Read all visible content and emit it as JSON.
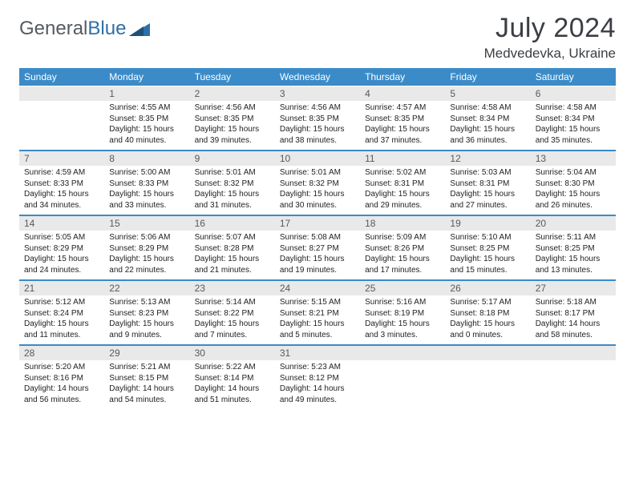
{
  "logo": {
    "text1": "General",
    "text2": "Blue"
  },
  "title": "July 2024",
  "location": "Medvedevka, Ukraine",
  "colors": {
    "header_bg": "#3b8bc8",
    "header_text": "#ffffff",
    "num_bg": "#e9e9e9",
    "num_text": "#555a5f",
    "cell_text": "#222222",
    "divider": "#3b8bc8",
    "logo_grey": "#555a5f",
    "logo_blue": "#2f6fa7",
    "title_color": "#3b3f43"
  },
  "daysOfWeek": [
    "Sunday",
    "Monday",
    "Tuesday",
    "Wednesday",
    "Thursday",
    "Friday",
    "Saturday"
  ],
  "weeks": [
    {
      "nums": [
        "",
        "1",
        "2",
        "3",
        "4",
        "5",
        "6"
      ],
      "cells": [
        "",
        "Sunrise: 4:55 AM\nSunset: 8:35 PM\nDaylight: 15 hours and 40 minutes.",
        "Sunrise: 4:56 AM\nSunset: 8:35 PM\nDaylight: 15 hours and 39 minutes.",
        "Sunrise: 4:56 AM\nSunset: 8:35 PM\nDaylight: 15 hours and 38 minutes.",
        "Sunrise: 4:57 AM\nSunset: 8:35 PM\nDaylight: 15 hours and 37 minutes.",
        "Sunrise: 4:58 AM\nSunset: 8:34 PM\nDaylight: 15 hours and 36 minutes.",
        "Sunrise: 4:58 AM\nSunset: 8:34 PM\nDaylight: 15 hours and 35 minutes."
      ]
    },
    {
      "nums": [
        "7",
        "8",
        "9",
        "10",
        "11",
        "12",
        "13"
      ],
      "cells": [
        "Sunrise: 4:59 AM\nSunset: 8:33 PM\nDaylight: 15 hours and 34 minutes.",
        "Sunrise: 5:00 AM\nSunset: 8:33 PM\nDaylight: 15 hours and 33 minutes.",
        "Sunrise: 5:01 AM\nSunset: 8:32 PM\nDaylight: 15 hours and 31 minutes.",
        "Sunrise: 5:01 AM\nSunset: 8:32 PM\nDaylight: 15 hours and 30 minutes.",
        "Sunrise: 5:02 AM\nSunset: 8:31 PM\nDaylight: 15 hours and 29 minutes.",
        "Sunrise: 5:03 AM\nSunset: 8:31 PM\nDaylight: 15 hours and 27 minutes.",
        "Sunrise: 5:04 AM\nSunset: 8:30 PM\nDaylight: 15 hours and 26 minutes."
      ]
    },
    {
      "nums": [
        "14",
        "15",
        "16",
        "17",
        "18",
        "19",
        "20"
      ],
      "cells": [
        "Sunrise: 5:05 AM\nSunset: 8:29 PM\nDaylight: 15 hours and 24 minutes.",
        "Sunrise: 5:06 AM\nSunset: 8:29 PM\nDaylight: 15 hours and 22 minutes.",
        "Sunrise: 5:07 AM\nSunset: 8:28 PM\nDaylight: 15 hours and 21 minutes.",
        "Sunrise: 5:08 AM\nSunset: 8:27 PM\nDaylight: 15 hours and 19 minutes.",
        "Sunrise: 5:09 AM\nSunset: 8:26 PM\nDaylight: 15 hours and 17 minutes.",
        "Sunrise: 5:10 AM\nSunset: 8:25 PM\nDaylight: 15 hours and 15 minutes.",
        "Sunrise: 5:11 AM\nSunset: 8:25 PM\nDaylight: 15 hours and 13 minutes."
      ]
    },
    {
      "nums": [
        "21",
        "22",
        "23",
        "24",
        "25",
        "26",
        "27"
      ],
      "cells": [
        "Sunrise: 5:12 AM\nSunset: 8:24 PM\nDaylight: 15 hours and 11 minutes.",
        "Sunrise: 5:13 AM\nSunset: 8:23 PM\nDaylight: 15 hours and 9 minutes.",
        "Sunrise: 5:14 AM\nSunset: 8:22 PM\nDaylight: 15 hours and 7 minutes.",
        "Sunrise: 5:15 AM\nSunset: 8:21 PM\nDaylight: 15 hours and 5 minutes.",
        "Sunrise: 5:16 AM\nSunset: 8:19 PM\nDaylight: 15 hours and 3 minutes.",
        "Sunrise: 5:17 AM\nSunset: 8:18 PM\nDaylight: 15 hours and 0 minutes.",
        "Sunrise: 5:18 AM\nSunset: 8:17 PM\nDaylight: 14 hours and 58 minutes."
      ]
    },
    {
      "nums": [
        "28",
        "29",
        "30",
        "31",
        "",
        "",
        ""
      ],
      "cells": [
        "Sunrise: 5:20 AM\nSunset: 8:16 PM\nDaylight: 14 hours and 56 minutes.",
        "Sunrise: 5:21 AM\nSunset: 8:15 PM\nDaylight: 14 hours and 54 minutes.",
        "Sunrise: 5:22 AM\nSunset: 8:14 PM\nDaylight: 14 hours and 51 minutes.",
        "Sunrise: 5:23 AM\nSunset: 8:12 PM\nDaylight: 14 hours and 49 minutes.",
        "",
        "",
        ""
      ]
    }
  ]
}
